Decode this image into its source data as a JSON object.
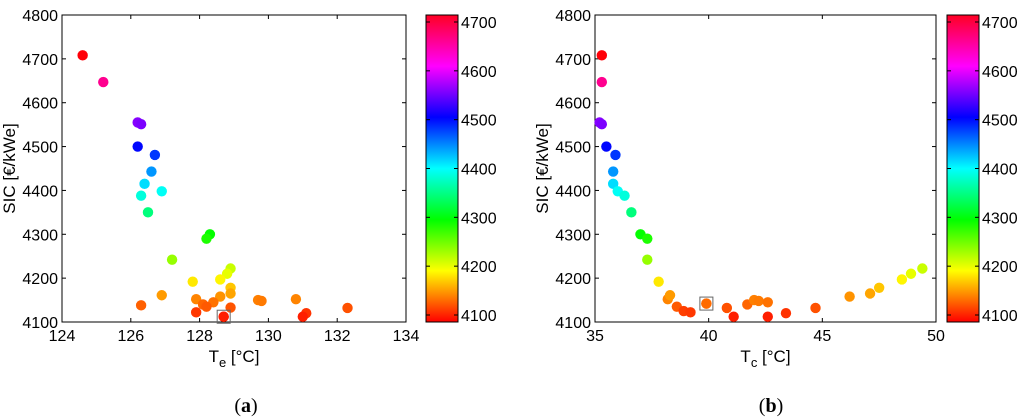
{
  "chart_data": [
    {
      "type": "scatter",
      "panel_label": "a",
      "xlabel_main": "T",
      "xlabel_sub": "e",
      "xlabel_unit": " [°C]",
      "ylabel": "SIC [€/kWe]",
      "xlim": [
        124,
        134
      ],
      "ylim": [
        4100,
        4800
      ],
      "x_ticks": [
        "124",
        "126",
        "128",
        "130",
        "132",
        "134"
      ],
      "y_ticks": [
        "4100",
        "4200",
        "4300",
        "4400",
        "4500",
        "4600",
        "4700",
        "4800"
      ],
      "colorbar": {
        "min": 4100,
        "max": 4700,
        "ticks": [
          "4100",
          "4200",
          "4300",
          "4400",
          "4500",
          "4600",
          "4700"
        ],
        "colormap": "hsv"
      },
      "highlighted_point_index": 0,
      "points": [
        {
          "x": 128.7,
          "y": 4112
        },
        {
          "x": 124.6,
          "y": 4708
        },
        {
          "x": 125.2,
          "y": 4647
        },
        {
          "x": 126.2,
          "y": 4555
        },
        {
          "x": 126.3,
          "y": 4551
        },
        {
          "x": 126.2,
          "y": 4500
        },
        {
          "x": 126.7,
          "y": 4481
        },
        {
          "x": 126.6,
          "y": 4443
        },
        {
          "x": 126.4,
          "y": 4415
        },
        {
          "x": 126.9,
          "y": 4398
        },
        {
          "x": 126.3,
          "y": 4388
        },
        {
          "x": 126.5,
          "y": 4350
        },
        {
          "x": 128.3,
          "y": 4300
        },
        {
          "x": 128.2,
          "y": 4290
        },
        {
          "x": 127.2,
          "y": 4242
        },
        {
          "x": 128.9,
          "y": 4222
        },
        {
          "x": 128.8,
          "y": 4210
        },
        {
          "x": 128.6,
          "y": 4197
        },
        {
          "x": 127.8,
          "y": 4192
        },
        {
          "x": 128.9,
          "y": 4178
        },
        {
          "x": 128.9,
          "y": 4165
        },
        {
          "x": 126.9,
          "y": 4161
        },
        {
          "x": 128.6,
          "y": 4158
        },
        {
          "x": 127.9,
          "y": 4152
        },
        {
          "x": 130.8,
          "y": 4152
        },
        {
          "x": 129.7,
          "y": 4150
        },
        {
          "x": 129.8,
          "y": 4148
        },
        {
          "x": 128.4,
          "y": 4145
        },
        {
          "x": 128.1,
          "y": 4140
        },
        {
          "x": 126.3,
          "y": 4138
        },
        {
          "x": 128.2,
          "y": 4135
        },
        {
          "x": 128.9,
          "y": 4133
        },
        {
          "x": 132.3,
          "y": 4132
        },
        {
          "x": 127.9,
          "y": 4122
        },
        {
          "x": 131.1,
          "y": 4120
        },
        {
          "x": 131.0,
          "y": 4112
        },
        {
          "x": 128.7,
          "y": 4112
        }
      ]
    },
    {
      "type": "scatter",
      "panel_label": "b",
      "xlabel_main": "T",
      "xlabel_sub": "c",
      "xlabel_unit": " [°C]",
      "ylabel": "SIC [€/kWe]",
      "xlim": [
        35,
        50
      ],
      "ylim": [
        4100,
        4800
      ],
      "x_ticks": [
        "35",
        "40",
        "45",
        "50"
      ],
      "y_ticks": [
        "4100",
        "4200",
        "4300",
        "4400",
        "4500",
        "4600",
        "4700",
        "4800"
      ],
      "colorbar": {
        "min": 4100,
        "max": 4700,
        "ticks": [
          "4100",
          "4200",
          "4300",
          "4400",
          "4500",
          "4600",
          "4700"
        ],
        "colormap": "hsv"
      },
      "highlighted_point_index": 0,
      "points": [
        {
          "x": 39.9,
          "y": 4142
        },
        {
          "x": 35.3,
          "y": 4708
        },
        {
          "x": 35.3,
          "y": 4647
        },
        {
          "x": 35.2,
          "y": 4555
        },
        {
          "x": 35.3,
          "y": 4551
        },
        {
          "x": 35.5,
          "y": 4500
        },
        {
          "x": 35.9,
          "y": 4481
        },
        {
          "x": 35.8,
          "y": 4443
        },
        {
          "x": 35.8,
          "y": 4415
        },
        {
          "x": 36.0,
          "y": 4398
        },
        {
          "x": 36.3,
          "y": 4388
        },
        {
          "x": 36.6,
          "y": 4350
        },
        {
          "x": 37.0,
          "y": 4300
        },
        {
          "x": 37.3,
          "y": 4290
        },
        {
          "x": 37.3,
          "y": 4242
        },
        {
          "x": 37.8,
          "y": 4192
        },
        {
          "x": 38.2,
          "y": 4152
        },
        {
          "x": 38.3,
          "y": 4161
        },
        {
          "x": 38.6,
          "y": 4135
        },
        {
          "x": 38.9,
          "y": 4125
        },
        {
          "x": 39.2,
          "y": 4122
        },
        {
          "x": 39.9,
          "y": 4142
        },
        {
          "x": 40.8,
          "y": 4132
        },
        {
          "x": 41.1,
          "y": 4112
        },
        {
          "x": 41.7,
          "y": 4140
        },
        {
          "x": 42.0,
          "y": 4150
        },
        {
          "x": 42.2,
          "y": 4148
        },
        {
          "x": 42.6,
          "y": 4145
        },
        {
          "x": 42.6,
          "y": 4112
        },
        {
          "x": 43.4,
          "y": 4120
        },
        {
          "x": 44.7,
          "y": 4132
        },
        {
          "x": 46.2,
          "y": 4158
        },
        {
          "x": 47.1,
          "y": 4165
        },
        {
          "x": 47.5,
          "y": 4178
        },
        {
          "x": 48.5,
          "y": 4197
        },
        {
          "x": 48.9,
          "y": 4210
        },
        {
          "x": 49.4,
          "y": 4222
        }
      ]
    }
  ]
}
